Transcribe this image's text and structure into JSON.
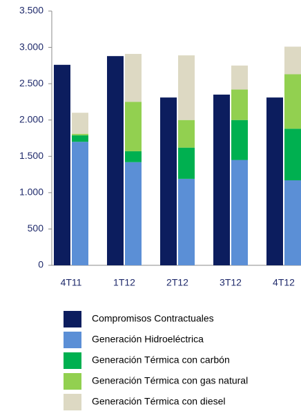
{
  "chart_data": {
    "type": "bar",
    "categories": [
      "4T11",
      "1T12",
      "2T12",
      "3T12",
      "4T12"
    ],
    "series": [
      {
        "name": "Compromisos Contractuales",
        "color": "#0c1d5e",
        "group": 0,
        "values": [
          2760,
          2880,
          2310,
          2350,
          2310
        ]
      },
      {
        "name": "Generación Hidroeléctrica",
        "color": "#5b8fd6",
        "group": 1,
        "values": [
          1700,
          1420,
          1190,
          1450,
          1170
        ]
      },
      {
        "name": "Generación Térmica con carbón",
        "color": "#00b050",
        "group": 1,
        "values": [
          90,
          150,
          430,
          550,
          710
        ]
      },
      {
        "name": "Generación Térmica con gas natural",
        "color": "#92d050",
        "group": 1,
        "values": [
          20,
          680,
          380,
          420,
          750
        ]
      },
      {
        "name": "Generación Térmica con diesel",
        "color": "#ddd9c3",
        "group": 1,
        "values": [
          290,
          660,
          890,
          330,
          380
        ]
      }
    ],
    "ylim": [
      0,
      3500
    ],
    "yticks": [
      0,
      500,
      {
        "value": 1000,
        "label": "1.000"
      },
      {
        "value": 1500,
        "label": "1.500"
      },
      {
        "value": 2000,
        "label": "2.000"
      },
      {
        "value": 2500,
        "label": "2.500"
      },
      {
        "value": 3000,
        "label": "3.000"
      },
      {
        "value": 3500,
        "label": "3.500"
      }
    ],
    "grid": false
  }
}
